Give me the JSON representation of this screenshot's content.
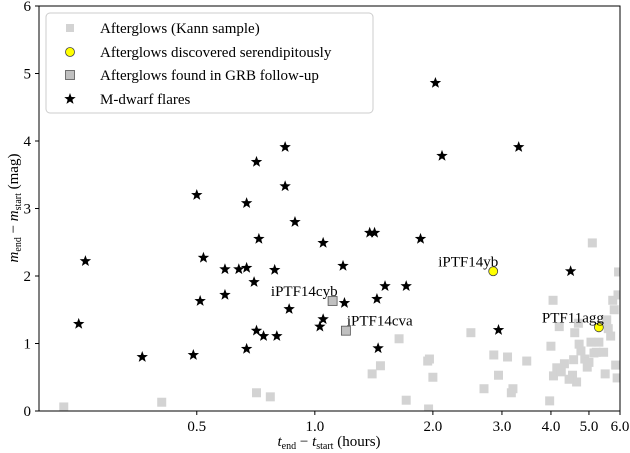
{
  "chart_data": {
    "type": "scatter",
    "title": "",
    "xlabel": "t_end − t_start (hours)",
    "xlabel_parts": {
      "t": "t",
      "end": "end",
      "minus": " − ",
      "start": "start",
      "unit": " (hours)"
    },
    "ylabel": "m_end − m_start (mag)",
    "ylabel_parts": {
      "m": "m",
      "end": "end",
      "minus": " − ",
      "start": "start",
      "unit": " (mag)"
    },
    "xscale": "log",
    "xlim": [
      0.198,
      6.0
    ],
    "ylim": [
      0,
      6
    ],
    "xticks": [
      0.5,
      1.0,
      2.0,
      3.0,
      4.0,
      5.0,
      6.0
    ],
    "xtick_labels": [
      "0.5",
      "1.0",
      "2.0",
      "3.0",
      "4.0",
      "5.0",
      "6.0"
    ],
    "yticks": [
      0,
      1,
      2,
      3,
      4,
      5,
      6
    ],
    "ytick_labels": [
      "0",
      "1",
      "2",
      "3",
      "4",
      "5",
      "6"
    ],
    "grid": false,
    "legend_position": "top-left",
    "colors": {
      "kann": "#d3d3d3",
      "serendipitous": "#ffff00",
      "followup": "#c0c0c0",
      "flare": "#000000"
    },
    "series": [
      {
        "name": "Afterglows (Kann sample)",
        "marker": "square-light",
        "points": [
          [
            0.229,
            0.06
          ],
          [
            0.407,
            0.13
          ],
          [
            0.71,
            0.27
          ],
          [
            0.77,
            0.21
          ],
          [
            1.64,
            1.07
          ],
          [
            1.4,
            0.55
          ],
          [
            1.47,
            0.67
          ],
          [
            1.71,
            0.16
          ],
          [
            1.94,
            0.74
          ],
          [
            1.96,
            0.77
          ],
          [
            2.0,
            0.5
          ],
          [
            1.95,
            0.03
          ],
          [
            2.5,
            1.16
          ],
          [
            2.7,
            0.33
          ],
          [
            2.86,
            0.83
          ],
          [
            2.94,
            0.53
          ],
          [
            3.1,
            0.8
          ],
          [
            3.17,
            0.27
          ],
          [
            3.2,
            0.33
          ],
          [
            3.47,
            0.74
          ],
          [
            3.97,
            0.15
          ],
          [
            4.0,
            0.96
          ],
          [
            4.05,
            1.64
          ],
          [
            4.06,
            0.52
          ],
          [
            4.14,
            0.64
          ],
          [
            4.2,
            1.25
          ],
          [
            4.33,
            0.7
          ],
          [
            4.54,
            0.53
          ],
          [
            4.57,
            0.76
          ],
          [
            4.6,
            1.16
          ],
          [
            4.65,
            0.43
          ],
          [
            4.7,
            1.3
          ],
          [
            4.72,
            0.99
          ],
          [
            4.77,
            0.89
          ],
          [
            4.88,
            0.77
          ],
          [
            4.95,
            0.65
          ],
          [
            5.1,
            2.49
          ],
          [
            5.06,
            1.02
          ],
          [
            5.15,
            0.86
          ],
          [
            5.22,
            0.87
          ],
          [
            5.3,
            1.02
          ],
          [
            5.45,
            0.87
          ],
          [
            5.5,
            0.55
          ],
          [
            5.55,
            1.35
          ],
          [
            5.6,
            1.22
          ],
          [
            5.68,
            1.11
          ],
          [
            5.75,
            1.64
          ],
          [
            5.8,
            1.5
          ],
          [
            5.9,
            0.49
          ],
          [
            5.95,
            2.06
          ],
          [
            5.93,
            1.72
          ],
          [
            5.85,
            0.68
          ],
          [
            4.25,
            0.58
          ],
          [
            4.45,
            0.47
          ],
          [
            5.0,
            0.72
          ]
        ]
      },
      {
        "name": "Afterglows discovered serendipitously",
        "marker": "circle-yellow",
        "points": [
          [
            2.85,
            2.07
          ],
          [
            5.3,
            1.24
          ]
        ]
      },
      {
        "name": "Afterglows found in GRB follow-up",
        "marker": "square-outlined",
        "points": [
          [
            1.11,
            1.63
          ],
          [
            1.2,
            1.19
          ]
        ]
      },
      {
        "name": "M-dwarf flares",
        "marker": "star",
        "points": [
          [
            0.5,
            3.2
          ],
          [
            0.71,
            3.69
          ],
          [
            0.84,
            3.91
          ],
          [
            0.84,
            3.33
          ],
          [
            0.67,
            3.08
          ],
          [
            0.89,
            2.8
          ],
          [
            0.26,
            2.22
          ],
          [
            0.25,
            1.29
          ],
          [
            0.363,
            0.8
          ],
          [
            0.49,
            0.83
          ],
          [
            0.52,
            2.27
          ],
          [
            0.51,
            1.63
          ],
          [
            0.59,
            2.1
          ],
          [
            0.64,
            2.1
          ],
          [
            0.67,
            2.12
          ],
          [
            0.72,
            2.55
          ],
          [
            0.79,
            2.09
          ],
          [
            0.7,
            1.91
          ],
          [
            0.59,
            1.72
          ],
          [
            0.86,
            1.51
          ],
          [
            0.71,
            1.19
          ],
          [
            0.74,
            1.11
          ],
          [
            0.8,
            1.11
          ],
          [
            0.67,
            0.92
          ],
          [
            1.03,
            1.25
          ],
          [
            1.05,
            1.36
          ],
          [
            1.05,
            2.49
          ],
          [
            1.38,
            2.64
          ],
          [
            1.42,
            2.64
          ],
          [
            1.86,
            2.55
          ],
          [
            1.18,
            2.15
          ],
          [
            1.51,
            1.85
          ],
          [
            1.71,
            1.85
          ],
          [
            1.19,
            1.6
          ],
          [
            1.44,
            1.66
          ],
          [
            1.45,
            0.93
          ],
          [
            2.94,
            1.2
          ],
          [
            4.49,
            2.07
          ],
          [
            2.03,
            4.86
          ],
          [
            2.11,
            3.78
          ],
          [
            3.31,
            3.91
          ]
        ]
      }
    ],
    "annotations": [
      {
        "text": "iPTF14cyb",
        "x": 1.11,
        "y": 1.63,
        "anchor": "end"
      },
      {
        "text": "iPTF14cva",
        "x": 1.2,
        "y": 1.19,
        "anchor": "start"
      },
      {
        "text": "iPTF14yb",
        "x": 2.85,
        "y": 2.07,
        "anchor": "end"
      },
      {
        "text": "PTF11agg",
        "x": 5.3,
        "y": 1.24,
        "anchor": "end"
      }
    ]
  }
}
